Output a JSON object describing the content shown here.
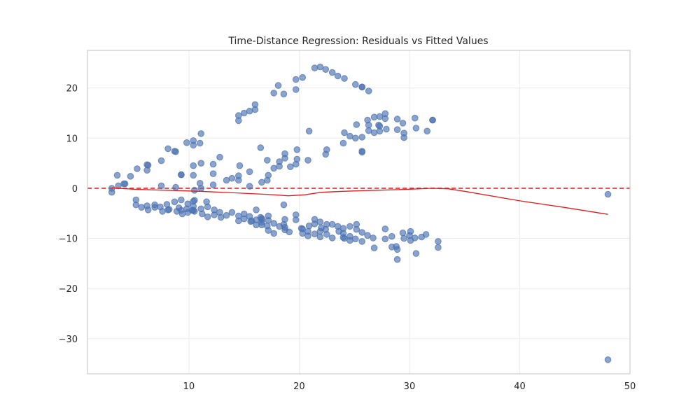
{
  "chart_data": {
    "type": "scatter",
    "title": "Time-Distance Regression: Residuals vs Fitted Values",
    "xlabel": "",
    "ylabel": "",
    "xlim": [
      0.8,
      50
    ],
    "ylim": [
      -37,
      27.5
    ],
    "x_ticks": [
      10,
      20,
      30,
      40,
      50
    ],
    "y_ticks": [
      -30,
      -20,
      -10,
      0,
      10,
      20
    ],
    "x_tick_labels": [
      "10",
      "20",
      "30",
      "40",
      "50"
    ],
    "y_tick_labels": [
      "−30",
      "−20",
      "−10",
      "0",
      "10",
      "20"
    ],
    "grid": true,
    "reference_line": {
      "y": 0,
      "style": "dashed",
      "color": "#d62728"
    },
    "smooth_line": {
      "color": "#e31a1c",
      "points": [
        [
          3,
          0.1
        ],
        [
          5,
          -0.2
        ],
        [
          8,
          -0.4
        ],
        [
          11,
          -0.6
        ],
        [
          14,
          -0.9
        ],
        [
          17,
          -1.2
        ],
        [
          19,
          -1.5
        ],
        [
          20.5,
          -1.3
        ],
        [
          22,
          -0.8
        ],
        [
          24,
          -0.6
        ],
        [
          27,
          -0.4
        ],
        [
          30,
          -0.2
        ],
        [
          32,
          0
        ],
        [
          33.5,
          -0.1
        ],
        [
          35,
          -0.6
        ],
        [
          40,
          -2.5
        ],
        [
          44,
          -3.8
        ],
        [
          48,
          -5.2
        ]
      ]
    },
    "series": [
      {
        "color": "#4c72b0",
        "points": [
          [
            3,
            0
          ],
          [
            3,
            -0.8
          ],
          [
            3.5,
            2.6
          ],
          [
            3.6,
            0.5
          ],
          [
            4.1,
            0.9
          ],
          [
            4.2,
            0.9
          ],
          [
            4.7,
            2.4
          ],
          [
            5.3,
            3.9
          ],
          [
            5.2,
            -2.3
          ],
          [
            5.2,
            -3.3
          ],
          [
            5.7,
            -3.8
          ],
          [
            6.2,
            4.7
          ],
          [
            6.3,
            4.6
          ],
          [
            6.2,
            3.6
          ],
          [
            6.2,
            -3.5
          ],
          [
            6.3,
            -4.3
          ],
          [
            6.9,
            -3.3
          ],
          [
            6.9,
            -3.8
          ],
          [
            7.5,
            5.5
          ],
          [
            7.5,
            0.5
          ],
          [
            7.4,
            -3.7
          ],
          [
            7.6,
            -4.6
          ],
          [
            8.1,
            7.9
          ],
          [
            8,
            -3.2
          ],
          [
            8.1,
            -4.3
          ],
          [
            8.2,
            -4.2
          ],
          [
            8.7,
            7.4
          ],
          [
            8.8,
            7.3
          ],
          [
            8.8,
            0.2
          ],
          [
            8.7,
            -2.7
          ],
          [
            8.9,
            -4.6
          ],
          [
            9.1,
            -3.9
          ],
          [
            9.3,
            2.7
          ],
          [
            9.3,
            2.7
          ],
          [
            9.3,
            -2.3
          ],
          [
            9.3,
            -4.4
          ],
          [
            9.4,
            -5.1
          ],
          [
            9.8,
            9.1
          ],
          [
            9.8,
            -4.1
          ],
          [
            9.9,
            -3.1
          ],
          [
            9.9,
            -4.8
          ],
          [
            10.3,
            -4.4
          ],
          [
            10.4,
            9.5
          ],
          [
            10.4,
            8.6
          ],
          [
            10.4,
            4.5
          ],
          [
            10.4,
            2.6
          ],
          [
            10.5,
            -0.4
          ],
          [
            10.4,
            -2.6
          ],
          [
            10.5,
            -2.4
          ],
          [
            10.4,
            -3.6
          ],
          [
            10.4,
            -4.4
          ],
          [
            10.5,
            -4.6
          ],
          [
            11.1,
            10.9
          ],
          [
            11,
            9
          ],
          [
            11.1,
            5
          ],
          [
            11,
            1
          ],
          [
            11.1,
            0
          ],
          [
            11.1,
            -4.1
          ],
          [
            11.2,
            -5.1
          ],
          [
            11.6,
            -2.7
          ],
          [
            11.7,
            -3.7
          ],
          [
            11.7,
            -5.7
          ],
          [
            12.2,
            4.8
          ],
          [
            12.2,
            2.9
          ],
          [
            12.2,
            0.7
          ],
          [
            12.3,
            -4.3
          ],
          [
            12.3,
            -5.3
          ],
          [
            12.8,
            6.2
          ],
          [
            12.8,
            -4.8
          ],
          [
            12.9,
            -5.8
          ],
          [
            13.4,
            1.6
          ],
          [
            13.4,
            -5.4
          ],
          [
            13.9,
            2
          ],
          [
            13.9,
            -4.8
          ],
          [
            14.5,
            14.5
          ],
          [
            14.5,
            13.5
          ],
          [
            14.6,
            4.5
          ],
          [
            14.5,
            2.5
          ],
          [
            14.5,
            1.6
          ],
          [
            14.5,
            -5.5
          ],
          [
            14.5,
            -6.5
          ],
          [
            15,
            15
          ],
          [
            15,
            -5.1
          ],
          [
            15,
            -6.1
          ],
          [
            15.5,
            15.4
          ],
          [
            15.5,
            3.3
          ],
          [
            15.5,
            0.4
          ],
          [
            15.5,
            -5.6
          ],
          [
            15.6,
            -6.6
          ],
          [
            15.7,
            -6.5
          ],
          [
            16,
            16.7
          ],
          [
            16,
            15.7
          ],
          [
            16.1,
            -4.3
          ],
          [
            16.1,
            -6.3
          ],
          [
            16.1,
            -7.3
          ],
          [
            16.5,
            8.1
          ],
          [
            16.6,
            1.2
          ],
          [
            16.5,
            -5.8
          ],
          [
            16.6,
            -6
          ],
          [
            16.6,
            -6.2
          ],
          [
            16.6,
            -6.8
          ],
          [
            16.6,
            -7.3
          ],
          [
            17.1,
            5.6
          ],
          [
            17.2,
            2.6
          ],
          [
            17.1,
            1.6
          ],
          [
            17.2,
            -5.5
          ],
          [
            17.2,
            -6.4
          ],
          [
            17.1,
            -7.5
          ],
          [
            17.2,
            -8.4
          ],
          [
            17.7,
            19
          ],
          [
            17.7,
            4
          ],
          [
            17.7,
            -7
          ],
          [
            17.7,
            -9
          ],
          [
            18.1,
            20.5
          ],
          [
            18.2,
            5.3
          ],
          [
            18.2,
            4.4
          ],
          [
            18.2,
            -7.6
          ],
          [
            18.6,
            18.8
          ],
          [
            18.7,
            6.9
          ],
          [
            18.7,
            6
          ],
          [
            18.6,
            -3.3
          ],
          [
            18.7,
            -6.2
          ],
          [
            18.6,
            -7.2
          ],
          [
            18.7,
            -7.8
          ],
          [
            18.7,
            -8.3
          ],
          [
            19.2,
            4.3
          ],
          [
            19.1,
            -8.7
          ],
          [
            19.7,
            21.7
          ],
          [
            19.7,
            19.7
          ],
          [
            19.8,
            7.7
          ],
          [
            19.8,
            5.8
          ],
          [
            19.7,
            4.8
          ],
          [
            19.7,
            -5.3
          ],
          [
            19.7,
            -6.3
          ],
          [
            20.3,
            22.1
          ],
          [
            20.2,
            -8
          ],
          [
            20.3,
            -8.1
          ],
          [
            20.3,
            -9
          ],
          [
            20.9,
            11.4
          ],
          [
            20.8,
            5.6
          ],
          [
            20.9,
            -7.5
          ],
          [
            20.8,
            -8.6
          ],
          [
            20.8,
            -9.5
          ],
          [
            21.4,
            24
          ],
          [
            21.4,
            -6.2
          ],
          [
            21.4,
            -7.1
          ],
          [
            21.4,
            -9.1
          ],
          [
            21.9,
            24.2
          ],
          [
            21.9,
            -6.7
          ],
          [
            22,
            -7.9
          ],
          [
            21.9,
            -8.6
          ],
          [
            21.9,
            -9.7
          ],
          [
            22.4,
            23.7
          ],
          [
            22.5,
            7.7
          ],
          [
            22.4,
            6.8
          ],
          [
            22.5,
            -7.2
          ],
          [
            22.4,
            -8.2
          ],
          [
            22.5,
            -9.2
          ],
          [
            23,
            23.1
          ],
          [
            23,
            -7.2
          ],
          [
            23,
            -9.9
          ],
          [
            23.5,
            22.4
          ],
          [
            23.5,
            -7.6
          ],
          [
            23.6,
            -8.6
          ],
          [
            24.1,
            21.9
          ],
          [
            24.1,
            11.1
          ],
          [
            24,
            9
          ],
          [
            24,
            -8
          ],
          [
            24,
            -9
          ],
          [
            24,
            -9.8
          ],
          [
            24.1,
            -10
          ],
          [
            24.6,
            10.4
          ],
          [
            24.6,
            -7.6
          ],
          [
            24.6,
            -9.6
          ],
          [
            24.6,
            -10.4
          ],
          [
            25.1,
            20.7
          ],
          [
            25.2,
            12.7
          ],
          [
            25.1,
            10
          ],
          [
            25.2,
            -7.2
          ],
          [
            25.2,
            -8.2
          ],
          [
            25.1,
            -10.1
          ],
          [
            25.7,
            20.2
          ],
          [
            25.7,
            20.2
          ],
          [
            25.7,
            10.2
          ],
          [
            25.7,
            7.4
          ],
          [
            25.7,
            7.2
          ],
          [
            25.7,
            -8.8
          ],
          [
            25.7,
            -10.6
          ],
          [
            26.3,
            19.4
          ],
          [
            26.2,
            13.6
          ],
          [
            26.3,
            12.6
          ],
          [
            26.3,
            11.5
          ],
          [
            26.2,
            -9.4
          ],
          [
            26.8,
            14.2
          ],
          [
            26.8,
            11.1
          ],
          [
            26.7,
            -9.9
          ],
          [
            26.8,
            -11.9
          ],
          [
            27.3,
            14.3
          ],
          [
            27.2,
            12.6
          ],
          [
            27.3,
            12.4
          ],
          [
            27.3,
            11.4
          ],
          [
            27.8,
            14.9
          ],
          [
            27.8,
            13.9
          ],
          [
            27.9,
            11.8
          ],
          [
            27.8,
            -8.1
          ],
          [
            27.8,
            -10.1
          ],
          [
            28.4,
            -9.6
          ],
          [
            28.4,
            -11.7
          ],
          [
            28.9,
            13.8
          ],
          [
            28.9,
            11.7
          ],
          [
            28.8,
            -11.6
          ],
          [
            28.9,
            -12.2
          ],
          [
            28.9,
            -14.2
          ],
          [
            29.4,
            13
          ],
          [
            29.5,
            11
          ],
          [
            29.5,
            10.1
          ],
          [
            29.4,
            -8.9
          ],
          [
            29.5,
            -10
          ],
          [
            30.1,
            -8.6
          ],
          [
            30,
            -9.4
          ],
          [
            30.1,
            -10.4
          ],
          [
            30.5,
            14
          ],
          [
            30.6,
            12
          ],
          [
            30.5,
            -9.9
          ],
          [
            30.6,
            -13
          ],
          [
            31.1,
            -9.7
          ],
          [
            31.6,
            11.4
          ],
          [
            31.5,
            -9.2
          ],
          [
            32.1,
            13.6
          ],
          [
            32.1,
            13.6
          ],
          [
            32.6,
            -10.6
          ],
          [
            32.6,
            -11.8
          ],
          [
            48,
            -1.2
          ],
          [
            48,
            -34.2
          ]
        ]
      }
    ]
  }
}
